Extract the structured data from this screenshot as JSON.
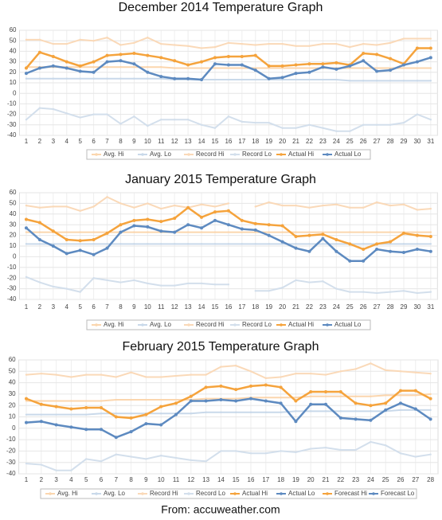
{
  "chart_data": [
    {
      "type": "line",
      "title": "December 2014 Temperature Graph",
      "categories": [
        "1",
        "2",
        "3",
        "4",
        "5",
        "6",
        "7",
        "8",
        "9",
        "10",
        "11",
        "12",
        "13",
        "14",
        "15",
        "16",
        "17",
        "18",
        "19",
        "20",
        "21",
        "22",
        "23",
        "24",
        "25",
        "26",
        "27",
        "28",
        "29",
        "30",
        "31"
      ],
      "ylim": [
        -40,
        60
      ],
      "yticks": [
        60,
        50,
        40,
        30,
        20,
        10,
        0,
        -10,
        -20,
        -30,
        -40
      ],
      "grid": true,
      "series": [
        {
          "name": "Avg. Hi",
          "color": "#fbd6ae",
          "values": [
            25,
            25,
            25,
            25,
            25,
            25,
            25,
            25,
            25,
            25,
            25,
            24,
            24,
            24,
            24,
            24,
            24,
            24,
            24,
            24,
            24,
            24,
            24,
            24,
            24,
            24,
            24,
            24,
            24,
            24,
            24
          ]
        },
        {
          "name": "Avg. Lo",
          "color": "#c9d9ea",
          "values": [
            14,
            14,
            14,
            14,
            14,
            14,
            14,
            14,
            14,
            14,
            14,
            13,
            13,
            13,
            13,
            13,
            13,
            13,
            13,
            13,
            13,
            13,
            13,
            13,
            12,
            12,
            12,
            12,
            12,
            12,
            12
          ]
        },
        {
          "name": "Record Hi",
          "color": "#fad9b8",
          "values": [
            51,
            51,
            47,
            47,
            51,
            50,
            53,
            46,
            48,
            53,
            47,
            46,
            45,
            43,
            44,
            48,
            47,
            46,
            47,
            47,
            45,
            45,
            47,
            47,
            44,
            47,
            46,
            48,
            52,
            52,
            52
          ]
        },
        {
          "name": "Record Lo",
          "color": "#d3dfec",
          "values": [
            -25,
            -14,
            -15,
            -19,
            -23,
            -20,
            -20,
            -29,
            -22,
            -31,
            -25,
            -25,
            -25,
            -30,
            -33,
            -22,
            -27,
            -28,
            -28,
            -33,
            -33,
            -30,
            -33,
            -36,
            -36,
            -30,
            -30,
            -30,
            -28,
            -20,
            -25
          ]
        },
        {
          "name": "Actual Hi",
          "color": "#f5a33c",
          "values": [
            24,
            39,
            35,
            30,
            26,
            30,
            36,
            37,
            38,
            36,
            34,
            31,
            27,
            30,
            34,
            35,
            35,
            36,
            26,
            26,
            27,
            28,
            28,
            29,
            27,
            38,
            37,
            33,
            28,
            43,
            43
          ]
        },
        {
          "name": "Actual Lo",
          "color": "#5d8ac0",
          "values": [
            19,
            24,
            26,
            24,
            21,
            20,
            30,
            31,
            28,
            20,
            16,
            14,
            14,
            13,
            28,
            27,
            27,
            22,
            14,
            15,
            19,
            20,
            25,
            23,
            26,
            31,
            21,
            22,
            27,
            30,
            34
          ]
        }
      ]
    },
    {
      "type": "line",
      "title": "January 2015 Temperature Graph",
      "categories": [
        "1",
        "2",
        "3",
        "4",
        "5",
        "6",
        "7",
        "8",
        "9",
        "10",
        "11",
        "12",
        "13",
        "14",
        "15",
        "16",
        "17",
        "18",
        "19",
        "20",
        "21",
        "22",
        "23",
        "24",
        "25",
        "26",
        "27",
        "28",
        "29",
        "30",
        "31"
      ],
      "ylim": [
        -40,
        60
      ],
      "yticks": [
        60,
        50,
        40,
        30,
        20,
        10,
        0,
        -10,
        -20,
        -30,
        -40
      ],
      "grid": true,
      "series": [
        {
          "name": "Avg. Hi",
          "color": "#fbd6ae",
          "values": [
            23,
            23,
            23,
            23,
            23,
            23,
            23,
            23,
            23,
            23,
            23,
            23,
            23,
            23,
            23,
            23,
            23,
            23,
            23,
            23,
            23,
            23,
            23,
            23,
            23,
            23,
            23,
            23,
            23,
            23,
            23
          ]
        },
        {
          "name": "Avg. Lo",
          "color": "#c9d9ea",
          "values": [
            12,
            12,
            12,
            12,
            12,
            12,
            12,
            12,
            12,
            12,
            12,
            12,
            12,
            12,
            12,
            12,
            12,
            12,
            12,
            12,
            12,
            12,
            12,
            12,
            12,
            12,
            12,
            12,
            12,
            12,
            12
          ]
        },
        {
          "name": "Record Hi",
          "color": "#fad9b8",
          "values": [
            48,
            46,
            47,
            47,
            43,
            47,
            56,
            50,
            46,
            50,
            45,
            48,
            46,
            49,
            47,
            50,
            null,
            47,
            51,
            48,
            48,
            46,
            48,
            49,
            46,
            46,
            51,
            48,
            49,
            44,
            45
          ]
        },
        {
          "name": "Record Lo",
          "color": "#d3dfec",
          "values": [
            -19,
            -24,
            -28,
            -30,
            -33,
            -20,
            -22,
            -24,
            -22,
            -25,
            -27,
            -27,
            -25,
            -25,
            -26,
            -26,
            null,
            -32,
            -32,
            -29,
            -22,
            -24,
            -23,
            -30,
            -33,
            -33,
            -34,
            -33,
            -32,
            -34,
            -33
          ]
        },
        {
          "name": "Actual Hi",
          "color": "#f5a33c",
          "values": [
            35,
            32,
            24,
            16,
            15,
            16,
            22,
            30,
            34,
            35,
            33,
            36,
            46,
            37,
            42,
            43,
            34,
            31,
            30,
            29,
            19,
            20,
            21,
            16,
            12,
            7,
            12,
            14,
            22,
            20,
            19
          ]
        },
        {
          "name": "Actual Lo",
          "color": "#5d8ac0",
          "values": [
            27,
            16,
            10,
            3,
            6,
            2,
            8,
            23,
            29,
            28,
            24,
            23,
            30,
            27,
            34,
            30,
            26,
            25,
            20,
            14,
            8,
            5,
            17,
            5,
            -4,
            -4,
            7,
            5,
            4,
            7,
            5
          ]
        }
      ]
    },
    {
      "type": "line",
      "title": "February 2015 Temperature Graph",
      "categories": [
        "1",
        "2",
        "3",
        "4",
        "5",
        "6",
        "7",
        "8",
        "9",
        "10",
        "11",
        "12",
        "13",
        "14",
        "15",
        "16",
        "17",
        "18",
        "19",
        "20",
        "21",
        "22",
        "23",
        "24",
        "25",
        "26",
        "27",
        "28"
      ],
      "ylim": [
        -40,
        60
      ],
      "yticks": [
        60,
        50,
        40,
        30,
        20,
        10,
        0,
        -10,
        -20,
        -30,
        -40
      ],
      "grid": true,
      "series": [
        {
          "name": "Avg. Hi",
          "color": "#fbd6ae",
          "values": [
            24,
            24,
            24,
            24,
            24,
            24,
            25,
            25,
            25,
            25,
            25,
            25,
            26,
            26,
            26,
            27,
            27,
            27,
            27,
            28,
            28,
            28,
            28,
            28,
            29,
            29,
            29,
            30
          ]
        },
        {
          "name": "Avg. Lo",
          "color": "#c9d9ea",
          "values": [
            12,
            12,
            12,
            12,
            12,
            13,
            13,
            13,
            13,
            13,
            13,
            13,
            14,
            14,
            14,
            14,
            14,
            14,
            15,
            15,
            15,
            15,
            15,
            15,
            15,
            16,
            16,
            16
          ]
        },
        {
          "name": "Record Hi",
          "color": "#fad9b8",
          "values": [
            47,
            48,
            47,
            45,
            47,
            47,
            45,
            49,
            45,
            45,
            46,
            47,
            47,
            54,
            55,
            50,
            44,
            45,
            48,
            48,
            47,
            50,
            52,
            57,
            51,
            50,
            49,
            48
          ]
        },
        {
          "name": "Record Lo",
          "color": "#d3dfec",
          "values": [
            -31,
            -32,
            -37,
            -37,
            -27,
            -29,
            -23,
            -25,
            -27,
            -24,
            -26,
            -28,
            -29,
            -20,
            -20,
            -22,
            -22,
            -20,
            -21,
            -18,
            -17,
            -19,
            -19,
            -12,
            -15,
            -22,
            -25,
            -23
          ]
        },
        {
          "name": "Actual Hi",
          "color": "#f5a33c",
          "values": [
            26,
            21,
            19,
            17,
            18,
            18,
            10,
            9,
            12,
            19,
            22,
            28,
            36,
            37,
            34,
            37,
            38,
            36,
            24,
            32,
            32,
            32,
            22,
            20,
            22,
            33,
            33,
            26
          ]
        },
        {
          "name": "Actual Lo",
          "color": "#5d8ac0",
          "values": [
            5,
            6,
            3,
            1,
            -1,
            -1,
            -8,
            -3,
            4,
            3,
            12,
            24,
            24,
            25,
            24,
            26,
            24,
            22,
            6,
            21,
            21,
            9,
            8,
            7,
            16,
            22,
            17,
            8
          ]
        },
        {
          "name": "Forecast Hi",
          "color": "#f5a33c",
          "values": [
            null,
            null,
            null,
            null,
            null,
            null,
            null,
            null,
            null,
            null,
            null,
            null,
            null,
            null,
            null,
            null,
            null,
            null,
            null,
            null,
            null,
            null,
            null,
            null,
            null,
            null,
            null,
            null
          ]
        },
        {
          "name": "Forecast Lo",
          "color": "#5d8ac0",
          "values": [
            null,
            null,
            null,
            null,
            null,
            null,
            null,
            null,
            null,
            null,
            null,
            null,
            null,
            null,
            null,
            null,
            null,
            null,
            null,
            null,
            null,
            null,
            null,
            null,
            null,
            null,
            null,
            null
          ]
        }
      ]
    }
  ],
  "source": "From: accuweather.com"
}
